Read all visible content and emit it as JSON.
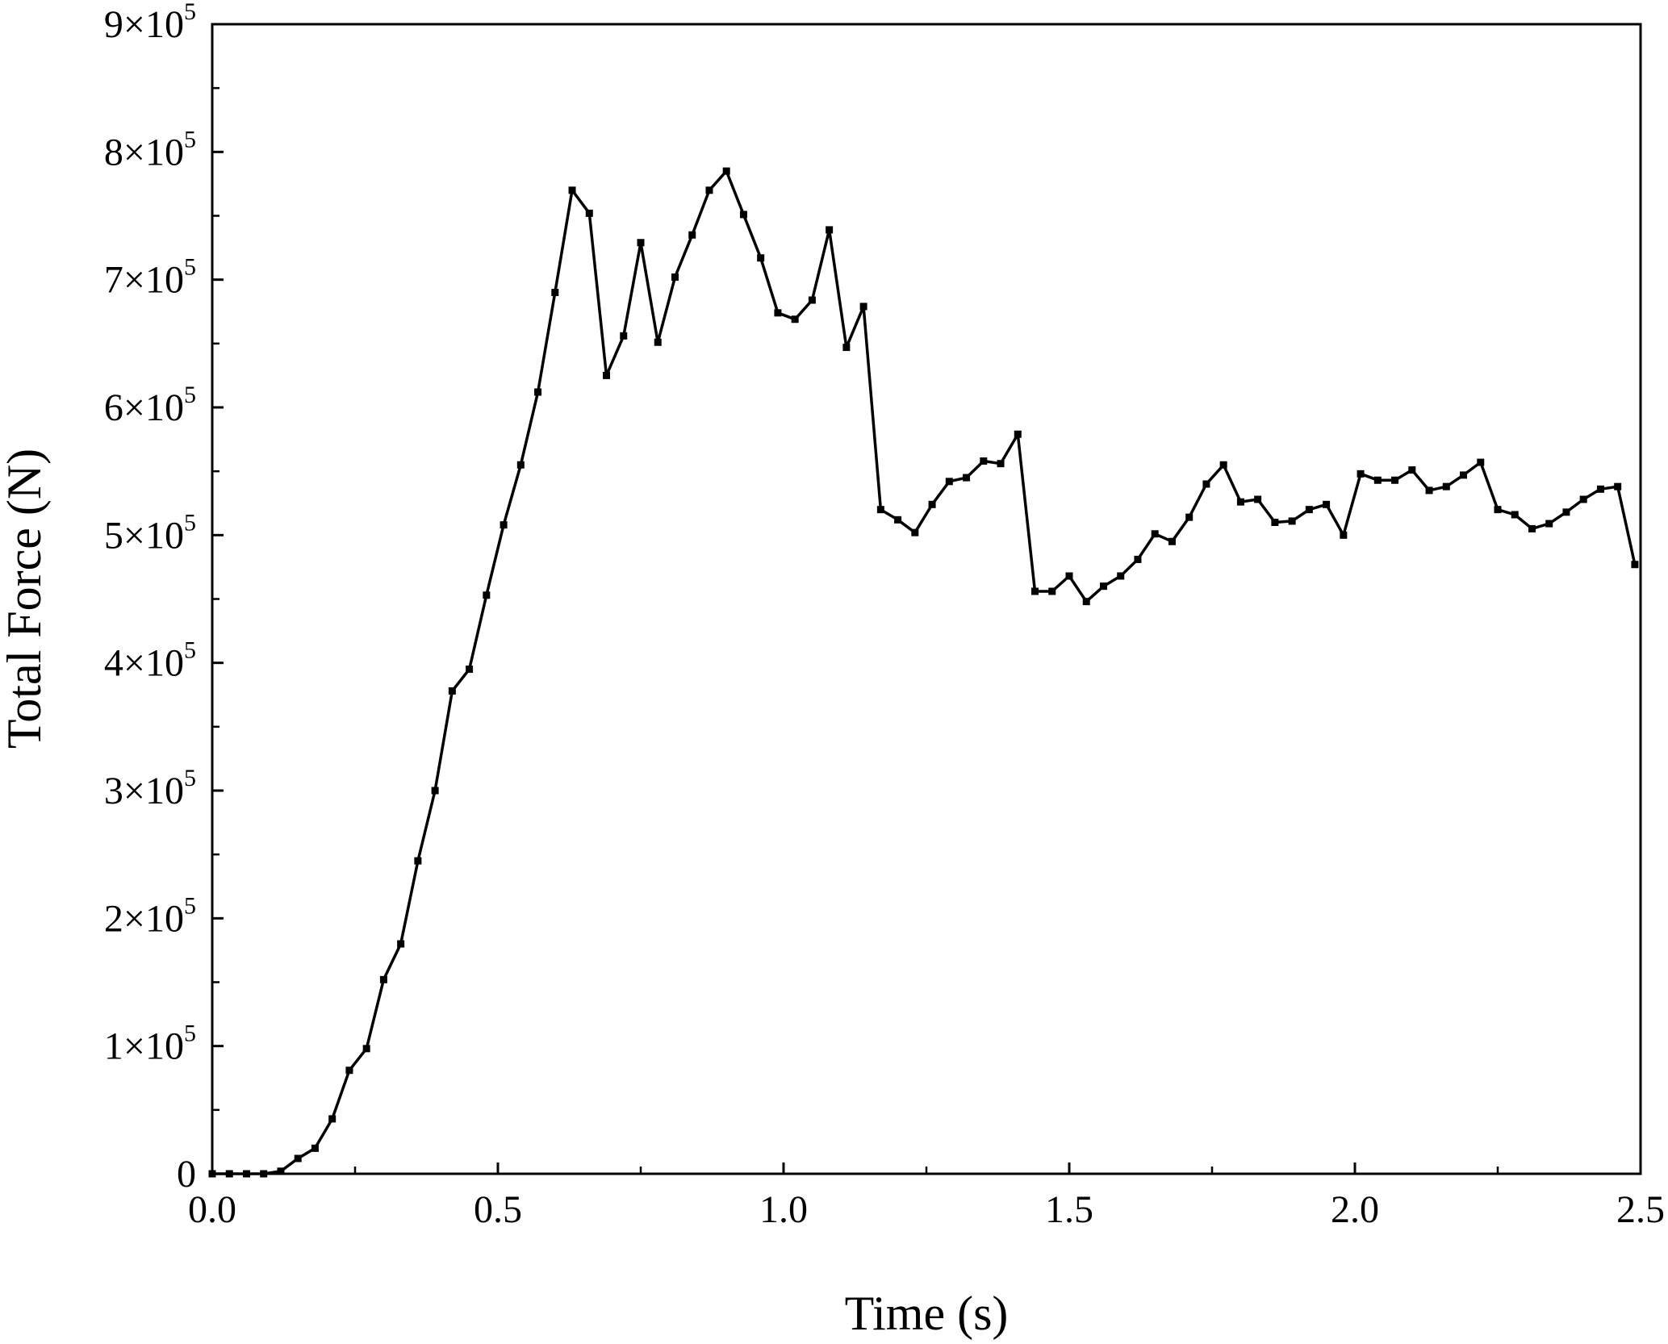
{
  "chart_data": {
    "type": "line",
    "title": "",
    "xlabel": "Time (s)",
    "ylabel": "Total Force (N)",
    "xlim": [
      0,
      2.5
    ],
    "ylim": [
      0,
      900000
    ],
    "grid": false,
    "legend": "none",
    "line_color": "#000000",
    "marker": "square",
    "x_ticks": [
      0.0,
      0.5,
      1.0,
      1.5,
      2.0,
      2.5
    ],
    "x_tick_labels": [
      "0.0",
      "0.5",
      "1.0",
      "1.5",
      "2.0",
      "2.5"
    ],
    "y_ticks": [
      0,
      100000,
      200000,
      300000,
      400000,
      500000,
      600000,
      700000,
      800000,
      900000
    ],
    "y_tick_labels": [
      {
        "mantissa": "0",
        "times": "",
        "base": "",
        "exp": ""
      },
      {
        "mantissa": "1",
        "times": "×",
        "base": "10",
        "exp": "5"
      },
      {
        "mantissa": "2",
        "times": "×",
        "base": "10",
        "exp": "5"
      },
      {
        "mantissa": "3",
        "times": "×",
        "base": "10",
        "exp": "5"
      },
      {
        "mantissa": "4",
        "times": "×",
        "base": "10",
        "exp": "5"
      },
      {
        "mantissa": "5",
        "times": "×",
        "base": "10",
        "exp": "5"
      },
      {
        "mantissa": "6",
        "times": "×",
        "base": "10",
        "exp": "5"
      },
      {
        "mantissa": "7",
        "times": "×",
        "base": "10",
        "exp": "5"
      },
      {
        "mantissa": "8",
        "times": "×",
        "base": "10",
        "exp": "5"
      },
      {
        "mantissa": "9",
        "times": "×",
        "base": "10",
        "exp": "5"
      }
    ],
    "series": [
      {
        "x": [
          0.0,
          0.03,
          0.06,
          0.09,
          0.12,
          0.15,
          0.18,
          0.21,
          0.24,
          0.27,
          0.3,
          0.33,
          0.36,
          0.39,
          0.42,
          0.45,
          0.48,
          0.51,
          0.54,
          0.57,
          0.6,
          0.63,
          0.66,
          0.69,
          0.72,
          0.75,
          0.78,
          0.81,
          0.84,
          0.87,
          0.9,
          0.93,
          0.96,
          0.99,
          1.02,
          1.05,
          1.08,
          1.11,
          1.14,
          1.17,
          1.2,
          1.23,
          1.26,
          1.29,
          1.32,
          1.35,
          1.38,
          1.41,
          1.44,
          1.47,
          1.5,
          1.53,
          1.56,
          1.59,
          1.62,
          1.65,
          1.68,
          1.71,
          1.74,
          1.77,
          1.8,
          1.83,
          1.86,
          1.89,
          1.92,
          1.95,
          1.98,
          2.01,
          2.04,
          2.07,
          2.1,
          2.13,
          2.16,
          2.19,
          2.22,
          2.25,
          2.28,
          2.31,
          2.34,
          2.37,
          2.4,
          2.43,
          2.46,
          2.49
        ],
        "y": [
          0,
          0,
          0,
          0,
          2000,
          12000,
          20000,
          43000,
          81000,
          98000,
          152000,
          180000,
          245000,
          300000,
          378000,
          395000,
          453000,
          508000,
          555000,
          612000,
          690000,
          770000,
          752000,
          625000,
          656000,
          729000,
          651000,
          702000,
          735000,
          770000,
          785000,
          751000,
          717000,
          674000,
          669000,
          684000,
          739000,
          647000,
          679000,
          520000,
          512000,
          502000,
          524000,
          542000,
          545000,
          558000,
          556000,
          579000,
          456000,
          456000,
          468000,
          448000,
          460000,
          468000,
          481000,
          501000,
          495000,
          514000,
          540000,
          555000,
          526000,
          528000,
          510000,
          511000,
          520000,
          524000,
          500000,
          548000,
          543000,
          543000,
          551000,
          535000,
          538000,
          547000,
          557000,
          520000,
          516000,
          505000,
          509000,
          518000,
          528000,
          536000,
          538000,
          477000
        ]
      }
    ]
  }
}
